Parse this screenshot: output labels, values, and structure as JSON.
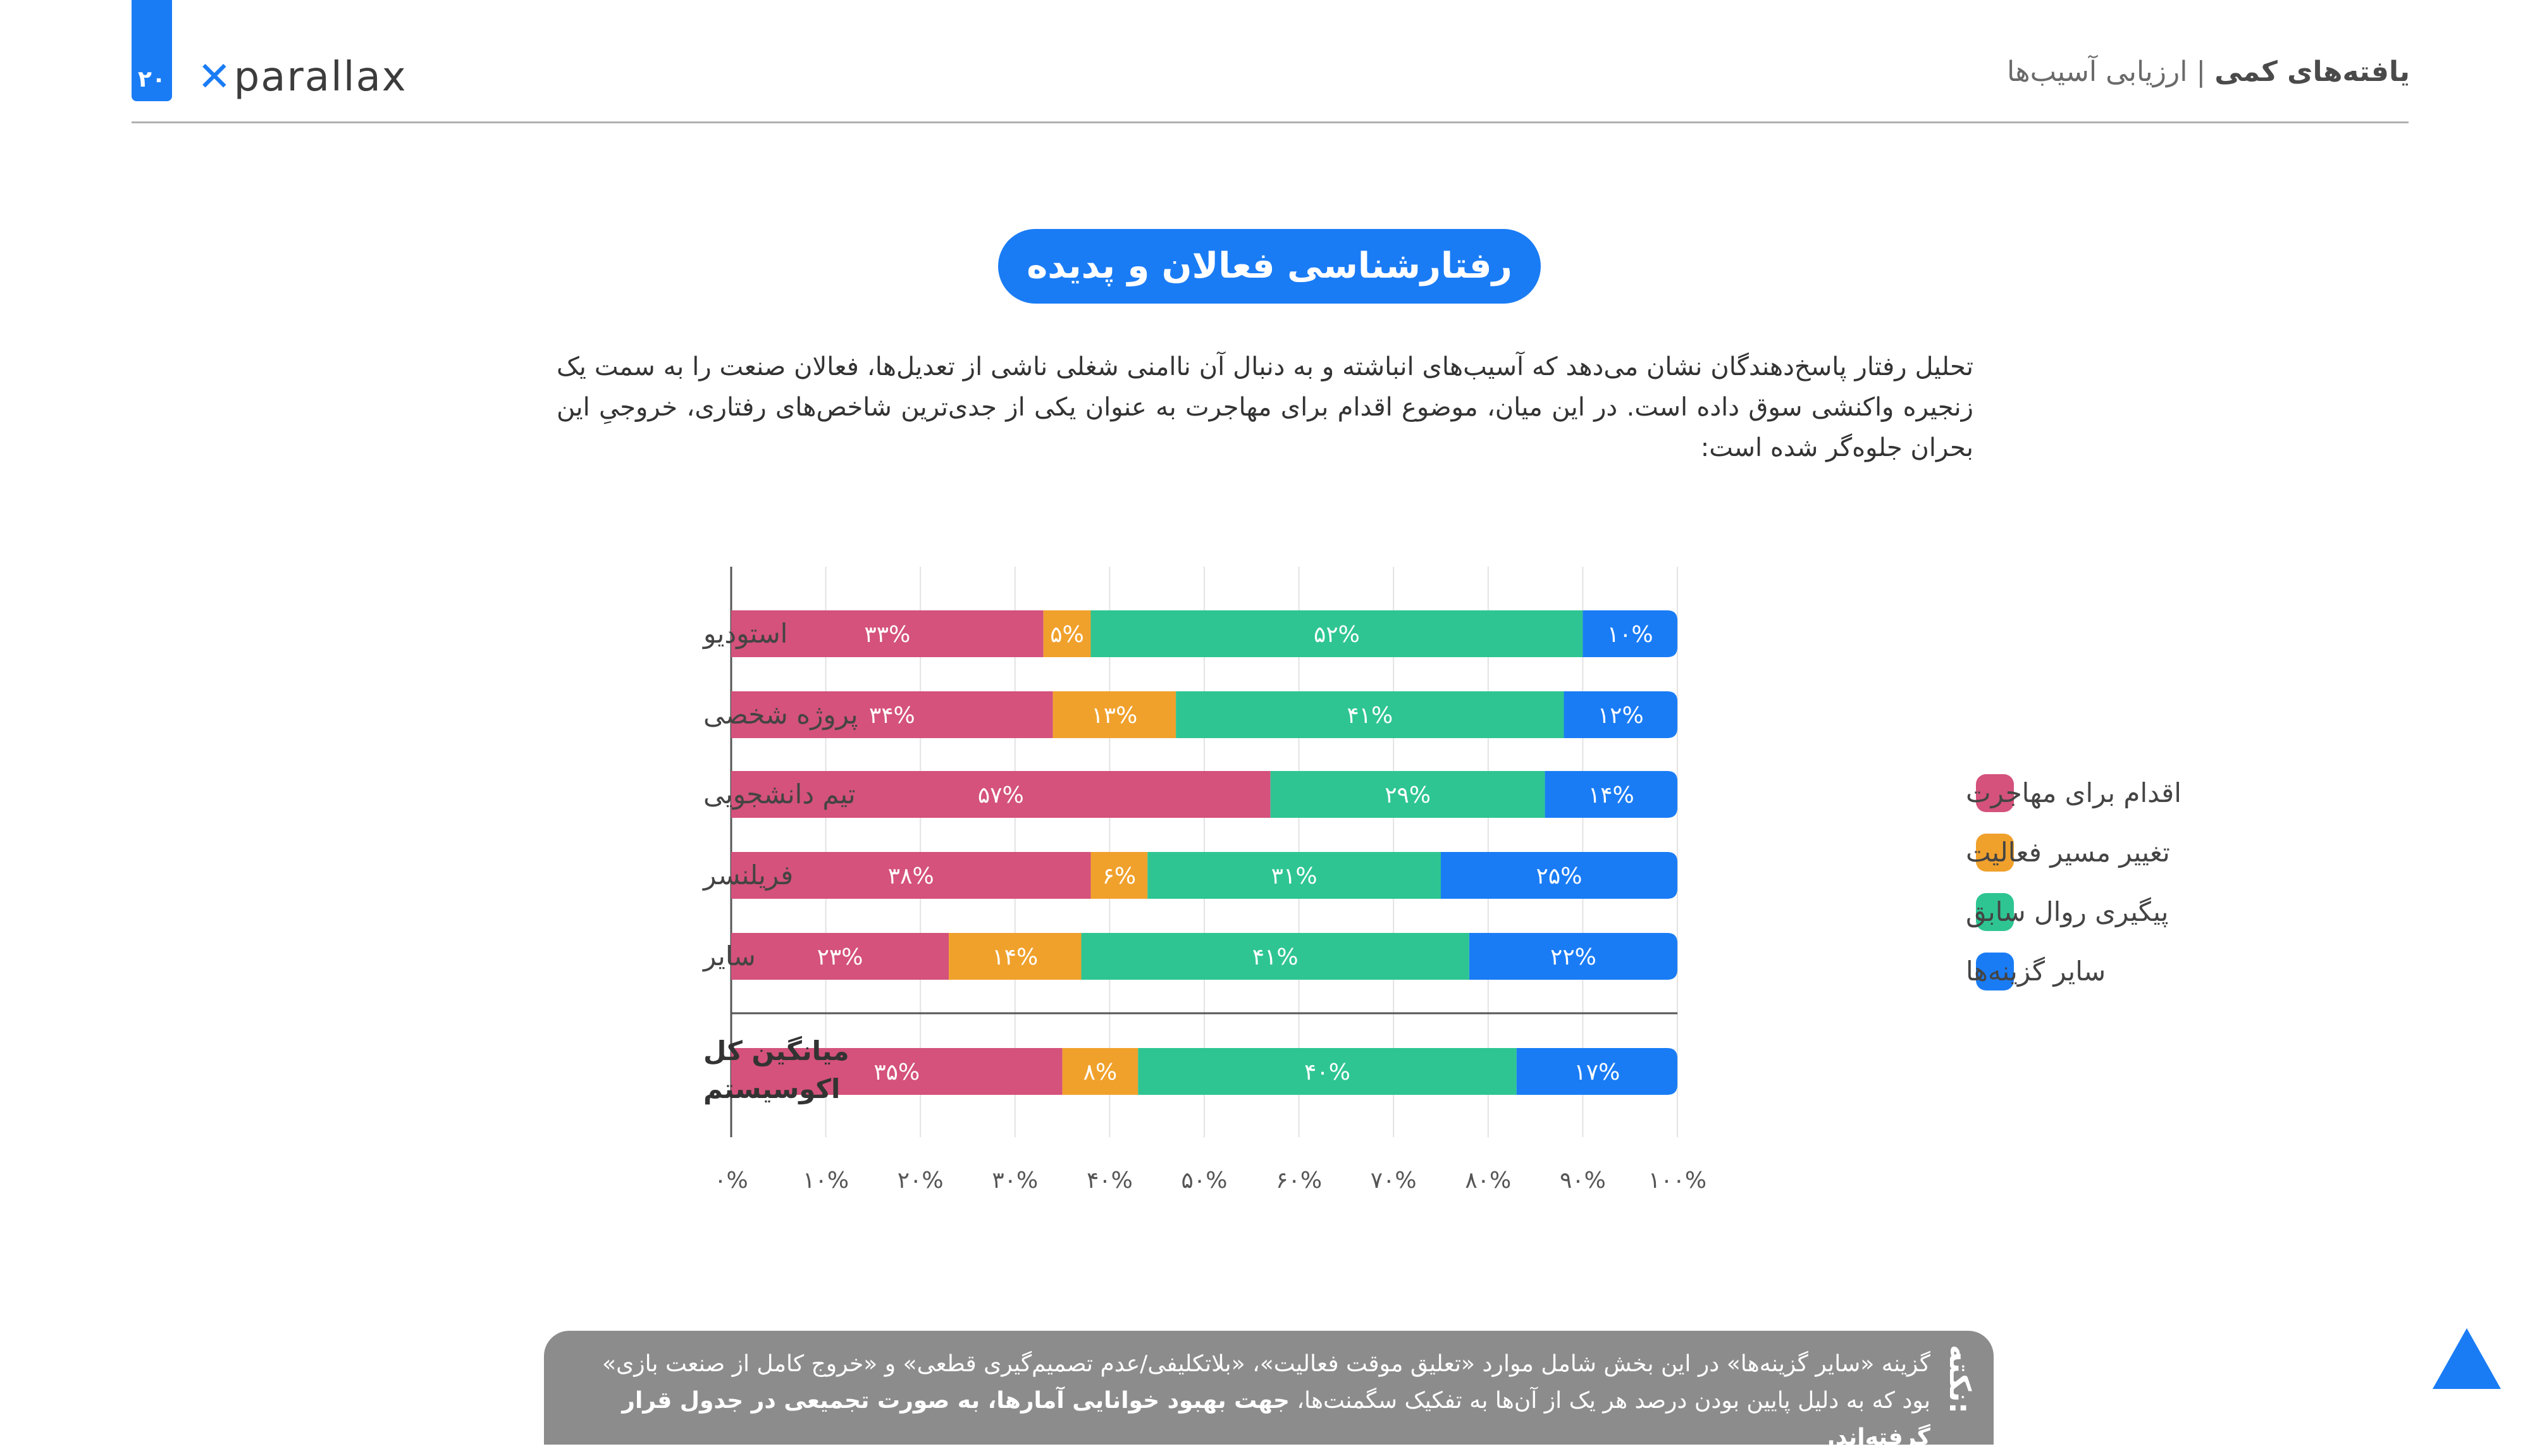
{
  "header": {
    "page_number": "۲۰",
    "logo_text": "parallax",
    "section_bold": "یافته‌های کمی",
    "separator": " | ",
    "section_sub": "ارزیابی آسیب‌ها"
  },
  "title": "رفتارشناسی فعالان و پدیده مهاجرت",
  "intro": "تحلیل رفتار پاسخ‌دهندگان نشان می‌دهد که آسیب‌های انباشته و به دنبال آن ناامنی شغلی ناشی از تعدیل‌ها، فعالان صنعت را به سمت یک زنجیره واکنشی سوق داده است. در این میان، موضوع اقدام برای مهاجرت به عنوان یکی از جدی‌ترین شاخص‌های رفتاری، خروجیِ این بحران جلوه‌گر شده است:",
  "chart_data": {
    "type": "bar",
    "orientation": "horizontal",
    "stacked": true,
    "categories": [
      "استودیو",
      "پروژه شخصی",
      "تیم دانشجویی",
      "فریلنسر",
      "سایر",
      "میانگین کل اکوسیستم"
    ],
    "series": [
      {
        "name": "اقدام برای مهاجرت",
        "color": "#d4527c",
        "values": [
          33,
          34,
          57,
          38,
          23,
          35
        ],
        "labels": [
          "۳۳%",
          "۳۴%",
          "۵۷%",
          "۳۸%",
          "۲۳%",
          "۳۵%"
        ]
      },
      {
        "name": "تغییر مسیر فعالیت",
        "color": "#f0a12c",
        "values": [
          5,
          13,
          0,
          6,
          14,
          8
        ],
        "labels": [
          "۵%",
          "۱۳%",
          "",
          "۶%",
          "۱۴%",
          "۸%"
        ]
      },
      {
        "name": "پیگیری روال سابق",
        "color": "#2ec592",
        "values": [
          52,
          41,
          29,
          31,
          41,
          40
        ],
        "labels": [
          "۵۲%",
          "۴۱%",
          "۲۹%",
          "۳۱%",
          "۴۱%",
          "۴۰%"
        ]
      },
      {
        "name": "سایر گزینه‌ها",
        "color": "#1a7cf5",
        "values": [
          10,
          12,
          14,
          25,
          22,
          17
        ],
        "labels": [
          "۱۰%",
          "۱۲%",
          "۱۴%",
          "۲۵%",
          "۲۲%",
          "۱۷%"
        ]
      }
    ],
    "xlim": [
      0,
      100
    ],
    "x_ticks": [
      "۰%",
      "۱۰%",
      "۲۰%",
      "۳۰%",
      "۴۰%",
      "۵۰%",
      "۶۰%",
      "۷۰%",
      "۸۰%",
      "۹۰%",
      "۱۰۰%"
    ],
    "grid": true,
    "legend_position": "right"
  },
  "note": {
    "label": "نکته:",
    "text": "گزینه «سایر گزینه‌ها» در این بخش شامل موارد «تعلیق موقت فعالیت»، «بلاتکلیفی/عدم تصمیم‌گیری قطعی» و «خروج کامل از صنعت بازی» بود که به دلیل پایین بودن درصد هر یک از آن‌ها به تفکیک سگمنت‌ها،",
    "bold_text": "جهت بهبود خوانایی آمارها، به صورت تجمیعی در جدول قرار گرفته‌اند."
  },
  "colors": {
    "accent": "#1a7cf5",
    "note_bg": "#8c8c8c"
  },
  "icons": {
    "corner": "triangle-icon"
  }
}
